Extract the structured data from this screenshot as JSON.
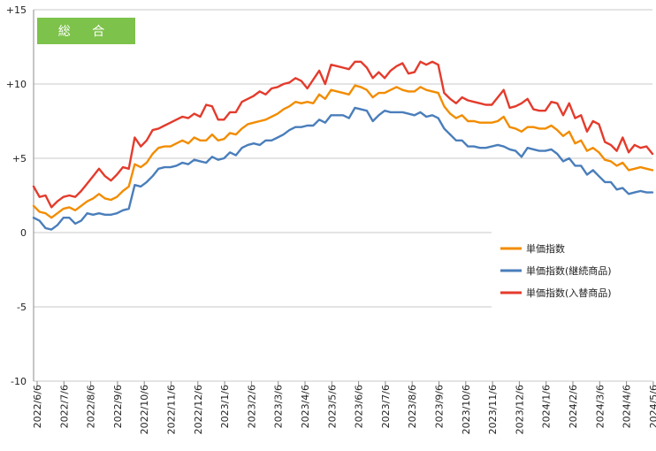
{
  "chart_data": {
    "type": "line",
    "badge": "総 合",
    "badge_color": "#7dc24b",
    "ylim": [
      -10,
      15
    ],
    "yticks": [
      {
        "value": 15,
        "label": "+15"
      },
      {
        "value": 10,
        "label": "+10"
      },
      {
        "value": 5,
        "label": "+5"
      },
      {
        "value": 0,
        "label": "0"
      },
      {
        "value": -5,
        "label": "-5"
      },
      {
        "value": -10,
        "label": "-10"
      }
    ],
    "xtick_labels": [
      "2022/6/6",
      "2022/7/6",
      "2022/8/6",
      "2022/9/6",
      "2022/10/6",
      "2022/11/6",
      "2022/12/6",
      "2023/1/6",
      "2023/2/6",
      "2023/3/6",
      "2023/4/6",
      "2023/5/6",
      "2023/6/6",
      "2023/7/6",
      "2023/8/6",
      "2023/9/6",
      "2023/10/6",
      "2023/11/6",
      "2023/12/6",
      "2024/1/6",
      "2024/2/6",
      "2024/3/6",
      "2024/4/6",
      "2024/5/6"
    ],
    "legend_position": "right",
    "series": [
      {
        "name": "単価指数",
        "color": "#f28c00",
        "values": [
          1.8,
          1.4,
          1.3,
          1.0,
          1.3,
          1.6,
          1.7,
          1.5,
          1.8,
          2.1,
          2.3,
          2.6,
          2.3,
          2.2,
          2.4,
          2.8,
          3.1,
          4.6,
          4.4,
          4.7,
          5.3,
          5.7,
          5.8,
          5.8,
          6.0,
          6.2,
          6.0,
          6.4,
          6.2,
          6.2,
          6.6,
          6.2,
          6.3,
          6.7,
          6.6,
          7.0,
          7.3,
          7.4,
          7.5,
          7.6,
          7.8,
          8.0,
          8.3,
          8.5,
          8.8,
          8.7,
          8.8,
          8.7,
          9.3,
          9.0,
          9.6,
          9.5,
          9.4,
          9.3,
          9.9,
          9.8,
          9.6,
          9.1,
          9.4,
          9.4,
          9.6,
          9.8,
          9.6,
          9.5,
          9.5,
          9.8,
          9.6,
          9.5,
          9.4,
          8.5,
          8.0,
          7.7,
          7.9,
          7.5,
          7.5,
          7.4,
          7.4,
          7.4,
          7.5,
          7.8,
          7.1,
          7.0,
          6.8,
          7.1,
          7.1,
          7.0,
          7.0,
          7.2,
          6.9,
          6.5,
          6.8,
          6.0,
          6.2,
          5.5,
          5.7,
          5.4,
          4.9,
          4.8,
          4.5,
          4.7,
          4.2,
          4.3,
          4.4,
          4.3,
          4.2
        ]
      },
      {
        "name": "単価指数(継続商品)",
        "color": "#4a7ebb",
        "values": [
          1.0,
          0.8,
          0.3,
          0.2,
          0.5,
          1.0,
          1.0,
          0.6,
          0.8,
          1.3,
          1.2,
          1.3,
          1.2,
          1.2,
          1.3,
          1.5,
          1.6,
          3.2,
          3.1,
          3.4,
          3.8,
          4.3,
          4.4,
          4.4,
          4.5,
          4.7,
          4.6,
          4.9,
          4.8,
          4.7,
          5.1,
          4.9,
          5.0,
          5.4,
          5.2,
          5.7,
          5.9,
          6.0,
          5.9,
          6.2,
          6.2,
          6.4,
          6.6,
          6.9,
          7.1,
          7.1,
          7.2,
          7.2,
          7.6,
          7.4,
          7.9,
          7.9,
          7.9,
          7.7,
          8.4,
          8.3,
          8.2,
          7.5,
          7.9,
          8.2,
          8.1,
          8.1,
          8.1,
          8.0,
          7.9,
          8.1,
          7.8,
          7.9,
          7.7,
          7.0,
          6.6,
          6.2,
          6.2,
          5.8,
          5.8,
          5.7,
          5.7,
          5.8,
          5.9,
          5.8,
          5.6,
          5.5,
          5.1,
          5.7,
          5.6,
          5.5,
          5.5,
          5.6,
          5.3,
          4.8,
          5.0,
          4.5,
          4.5,
          3.9,
          4.2,
          3.8,
          3.4,
          3.4,
          2.9,
          3.0,
          2.6,
          2.7,
          2.8,
          2.7,
          2.7
        ]
      },
      {
        "name": "単価指数(入替商品)",
        "color": "#e43b2c",
        "values": [
          3.1,
          2.4,
          2.5,
          1.7,
          2.1,
          2.4,
          2.5,
          2.4,
          2.8,
          3.3,
          3.8,
          4.3,
          3.8,
          3.5,
          3.9,
          4.4,
          4.3,
          6.4,
          5.8,
          6.2,
          6.9,
          7.0,
          7.2,
          7.4,
          7.6,
          7.8,
          7.7,
          8.0,
          7.8,
          8.6,
          8.5,
          7.6,
          7.6,
          8.1,
          8.1,
          8.8,
          9.0,
          9.2,
          9.5,
          9.3,
          9.7,
          9.8,
          10.0,
          10.1,
          10.4,
          10.2,
          9.7,
          10.3,
          10.9,
          10.0,
          11.3,
          11.2,
          11.1,
          11.0,
          11.5,
          11.5,
          11.1,
          10.4,
          10.8,
          10.4,
          10.9,
          11.2,
          11.4,
          10.7,
          10.8,
          11.5,
          11.3,
          11.5,
          11.3,
          9.4,
          9.0,
          8.7,
          9.1,
          8.9,
          8.8,
          8.7,
          8.6,
          8.6,
          9.1,
          9.6,
          8.4,
          8.5,
          8.7,
          9.0,
          8.3,
          8.2,
          8.2,
          8.8,
          8.7,
          7.9,
          8.7,
          7.7,
          7.9,
          6.8,
          7.5,
          7.3,
          6.1,
          5.9,
          5.5,
          6.4,
          5.4,
          5.9,
          5.7,
          5.8,
          5.3
        ]
      }
    ]
  }
}
